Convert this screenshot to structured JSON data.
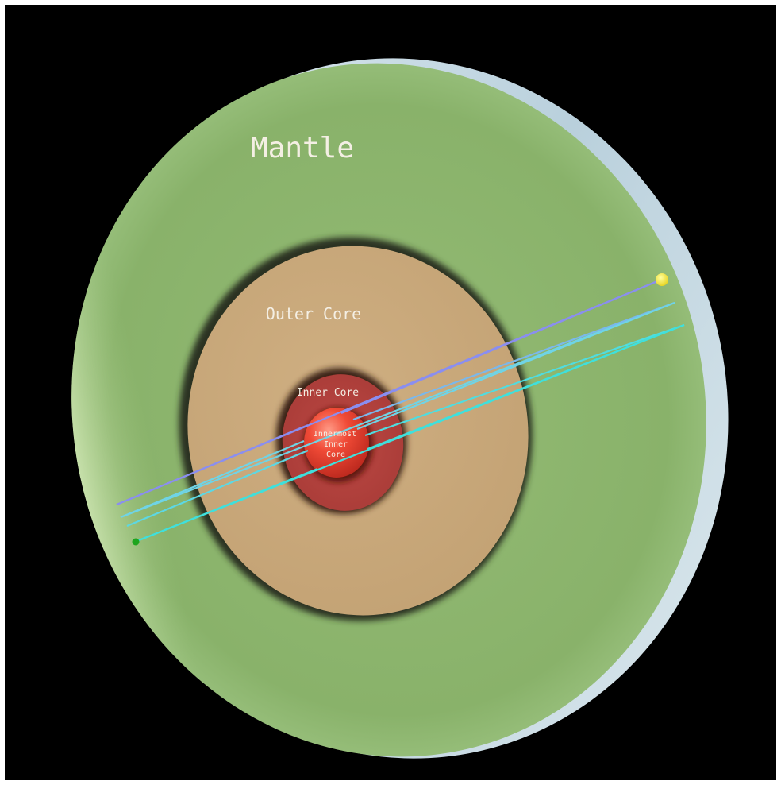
{
  "diagram": {
    "layers": [
      {
        "id": "mantle",
        "label": "Mantle",
        "color": "#8fb770"
      },
      {
        "id": "outer-core",
        "label": "Outer Core",
        "color": "#c9a97c"
      },
      {
        "id": "inner-core",
        "label": "Inner Core",
        "color": "#b6423e"
      },
      {
        "id": "innermost-inner-core",
        "label_lines": [
          "Innermost",
          "Inner",
          "Core"
        ],
        "color": "#e8382a"
      }
    ],
    "rays": {
      "source_color": "#f2e233",
      "receiver_color": "#1ea51e",
      "ray_colors": [
        "#8a8ef0",
        "#6fd4e6",
        "#3fe0dc"
      ]
    },
    "background_color": "#000000",
    "rim_color": "#cfe1ec"
  }
}
